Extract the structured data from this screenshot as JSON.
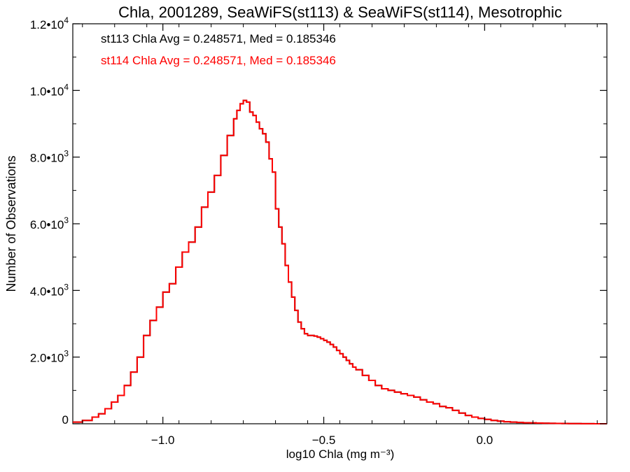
{
  "chart_data": {
    "type": "line",
    "style": "step",
    "title": "Chla, 2001289, SeaWiFS(st113) & SeaWiFS(st114), Mesotrophic",
    "xlabel": "log10 Chla (mg m⁻³)",
    "ylabel": "Number of Observations",
    "xlim": [
      -1.28,
      0.38
    ],
    "ylim": [
      0,
      12000
    ],
    "x_ticks": [
      -1.0,
      -0.5,
      0.0
    ],
    "x_tick_labels": [
      "−1.0",
      "−0.5",
      "0.0"
    ],
    "y_ticks": [
      0,
      2000,
      4000,
      6000,
      8000,
      10000,
      12000
    ],
    "y_tick_labels": [
      {
        "mantissa": "0",
        "exp": ""
      },
      {
        "mantissa": "2.0•10",
        "exp": "3"
      },
      {
        "mantissa": "4.0•10",
        "exp": "3"
      },
      {
        "mantissa": "6.0•10",
        "exp": "3"
      },
      {
        "mantissa": "8.0•10",
        "exp": "3"
      },
      {
        "mantissa": "1.0•10",
        "exp": "4"
      },
      {
        "mantissa": "1.2•10",
        "exp": "4"
      }
    ],
    "annotations": [
      {
        "text": "st113 Chla Avg = 0.248571, Med = 0.185346",
        "color": "#000000"
      },
      {
        "text": "st114 Chla Avg = 0.248571, Med = 0.185346",
        "color": "#ff0000"
      }
    ],
    "grid": false,
    "series": [
      {
        "color": "#ff0000",
        "x": [
          -1.28,
          -1.25,
          -1.22,
          -1.2,
          -1.18,
          -1.16,
          -1.14,
          -1.12,
          -1.1,
          -1.08,
          -1.06,
          -1.04,
          -1.02,
          -1.0,
          -0.98,
          -0.96,
          -0.94,
          -0.92,
          -0.9,
          -0.88,
          -0.86,
          -0.84,
          -0.82,
          -0.8,
          -0.78,
          -0.77,
          -0.76,
          -0.75,
          -0.74,
          -0.73,
          -0.72,
          -0.71,
          -0.7,
          -0.69,
          -0.68,
          -0.67,
          -0.66,
          -0.65,
          -0.64,
          -0.63,
          -0.62,
          -0.61,
          -0.6,
          -0.59,
          -0.58,
          -0.57,
          -0.56,
          -0.55,
          -0.54,
          -0.53,
          -0.52,
          -0.51,
          -0.5,
          -0.49,
          -0.48,
          -0.47,
          -0.46,
          -0.45,
          -0.44,
          -0.43,
          -0.42,
          -0.41,
          -0.4,
          -0.38,
          -0.36,
          -0.34,
          -0.32,
          -0.3,
          -0.28,
          -0.26,
          -0.24,
          -0.22,
          -0.2,
          -0.18,
          -0.16,
          -0.14,
          -0.12,
          -0.1,
          -0.08,
          -0.06,
          -0.04,
          -0.02,
          0.0,
          0.02,
          0.04,
          0.06,
          0.08,
          0.1,
          0.12,
          0.14,
          0.16,
          0.18,
          0.2,
          0.22,
          0.24,
          0.26,
          0.28,
          0.3,
          0.32,
          0.34,
          0.36,
          0.38
        ],
        "values": [
          50,
          100,
          200,
          300,
          450,
          650,
          850,
          1150,
          1550,
          2000,
          2650,
          3100,
          3500,
          3950,
          4200,
          4700,
          5150,
          5450,
          5900,
          6500,
          6950,
          7450,
          8050,
          8650,
          9150,
          9400,
          9600,
          9700,
          9650,
          9350,
          9250,
          9050,
          8850,
          8700,
          8450,
          7950,
          7550,
          6450,
          5900,
          5400,
          4750,
          4250,
          3800,
          3400,
          3050,
          2850,
          2700,
          2650,
          2650,
          2630,
          2600,
          2550,
          2500,
          2450,
          2380,
          2300,
          2200,
          2100,
          2000,
          1900,
          1800,
          1700,
          1620,
          1450,
          1300,
          1150,
          1050,
          1000,
          950,
          900,
          850,
          800,
          720,
          650,
          600,
          520,
          480,
          400,
          320,
          250,
          200,
          160,
          130,
          100,
          80,
          60,
          50,
          40,
          30,
          25,
          20,
          15,
          12,
          10,
          8,
          6,
          4,
          3,
          2,
          1,
          0,
          0
        ]
      },
      {
        "color": "#000000",
        "x": [
          -1.28,
          -1.25,
          -1.22,
          -1.2,
          -1.18,
          -1.16,
          -1.14,
          -1.12,
          -1.1,
          -1.08,
          -1.06,
          -1.04,
          -1.02,
          -1.0,
          -0.98,
          -0.96,
          -0.94,
          -0.92,
          -0.9,
          -0.88,
          -0.86,
          -0.84,
          -0.82,
          -0.8,
          -0.78,
          -0.77,
          -0.76,
          -0.75,
          -0.74,
          -0.73,
          -0.72,
          -0.71,
          -0.7,
          -0.69,
          -0.68,
          -0.67,
          -0.66,
          -0.65,
          -0.64,
          -0.63,
          -0.62,
          -0.61,
          -0.6,
          -0.59,
          -0.58,
          -0.57,
          -0.56,
          -0.55,
          -0.54,
          -0.53,
          -0.52,
          -0.51,
          -0.5,
          -0.49,
          -0.48,
          -0.47,
          -0.46,
          -0.45,
          -0.44,
          -0.43,
          -0.42,
          -0.41,
          -0.4,
          -0.38,
          -0.36,
          -0.34,
          -0.32,
          -0.3,
          -0.28,
          -0.26,
          -0.24,
          -0.22,
          -0.2,
          -0.18,
          -0.16,
          -0.14,
          -0.12,
          -0.1,
          -0.08,
          -0.06,
          -0.04,
          -0.02,
          0.0,
          0.02,
          0.04,
          0.06,
          0.08,
          0.1,
          0.12,
          0.14,
          0.16,
          0.18,
          0.2,
          0.22,
          0.24,
          0.26,
          0.28,
          0.3,
          0.32,
          0.34,
          0.36,
          0.38
        ],
        "values": [
          50,
          100,
          200,
          300,
          450,
          650,
          850,
          1150,
          1550,
          2000,
          2650,
          3100,
          3500,
          3950,
          4200,
          4700,
          5150,
          5450,
          5900,
          6500,
          6950,
          7450,
          8050,
          8650,
          9150,
          9400,
          9600,
          9700,
          9650,
          9350,
          9250,
          9050,
          8850,
          8700,
          8450,
          7950,
          7550,
          6450,
          5900,
          5400,
          4750,
          4250,
          3800,
          3400,
          3050,
          2850,
          2700,
          2650,
          2650,
          2630,
          2600,
          2550,
          2500,
          2450,
          2380,
          2300,
          2200,
          2100,
          2000,
          1900,
          1800,
          1700,
          1620,
          1450,
          1300,
          1150,
          1050,
          1000,
          950,
          900,
          850,
          800,
          720,
          650,
          600,
          520,
          480,
          400,
          320,
          250,
          200,
          160,
          130,
          100,
          80,
          60,
          50,
          40,
          30,
          25,
          20,
          15,
          12,
          10,
          8,
          6,
          4,
          3,
          2,
          1,
          0,
          0
        ]
      }
    ]
  }
}
